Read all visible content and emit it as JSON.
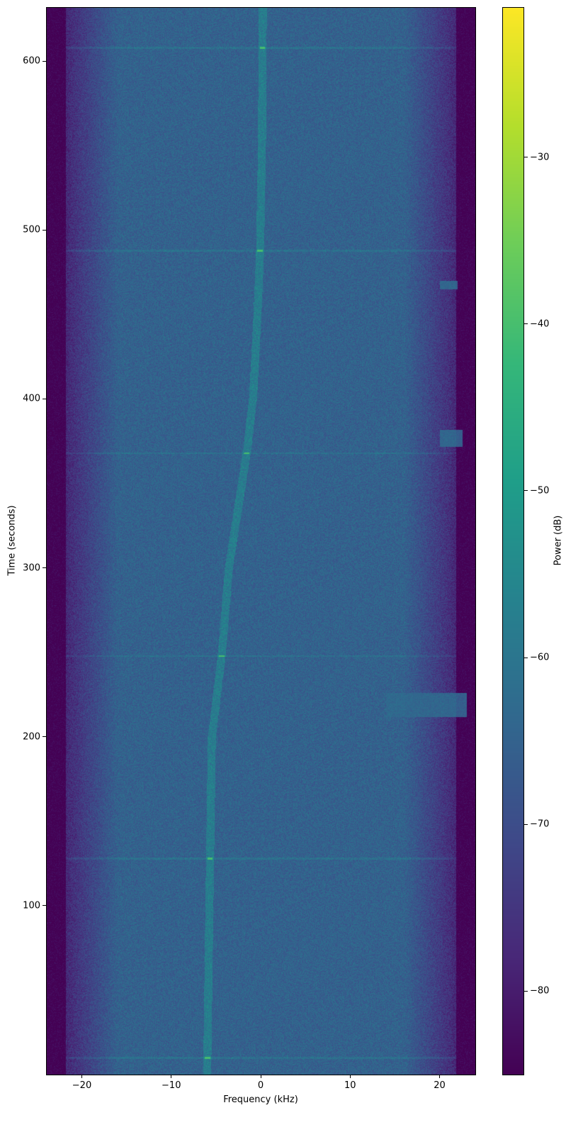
{
  "chart_data": {
    "type": "heatmap",
    "title": "",
    "xlabel": "Frequency (kHz)",
    "ylabel": "Time (seconds)",
    "xlim": [
      -24,
      24
    ],
    "ylim": [
      0,
      632
    ],
    "xticks": [
      -20,
      -10,
      0,
      10,
      20
    ],
    "xtick_labels": [
      "−20",
      "−10",
      "0",
      "10",
      "20"
    ],
    "yticks": [
      100,
      200,
      300,
      400,
      500,
      600
    ],
    "ytick_labels": [
      "100",
      "200",
      "300",
      "400",
      "500",
      "600"
    ],
    "colorbar": {
      "label": "Power (dB)",
      "colormap": "viridis",
      "range": [
        -85,
        -21
      ],
      "ticks": [
        -80,
        -70,
        -60,
        -50,
        -40,
        -30
      ],
      "tick_labels": [
        "−80",
        "−70",
        "−60",
        "−50",
        "−40",
        "−30"
      ]
    },
    "noise_floor_db": -65,
    "band_edge_khz": 21.5,
    "signal_trace": {
      "time_s": [
        0,
        10,
        128,
        200,
        248,
        300,
        368,
        400,
        450,
        488,
        550,
        632
      ],
      "frequency_khz": [
        -6.0,
        -6.0,
        -5.7,
        -5.5,
        -4.4,
        -3.6,
        -1.6,
        -0.9,
        -0.4,
        -0.1,
        0.1,
        0.2
      ],
      "power_db": -55
    },
    "impulse_lines_time_s": [
      10,
      128,
      248,
      368,
      488,
      608
    ],
    "bursts": [
      {
        "time_s": [
          212,
          226
        ],
        "frequency_khz": [
          14,
          23
        ]
      },
      {
        "time_s": [
          372,
          382
        ],
        "frequency_khz": [
          20,
          22.5
        ]
      },
      {
        "time_s": [
          465,
          470
        ],
        "frequency_khz": [
          20,
          22
        ]
      }
    ]
  }
}
